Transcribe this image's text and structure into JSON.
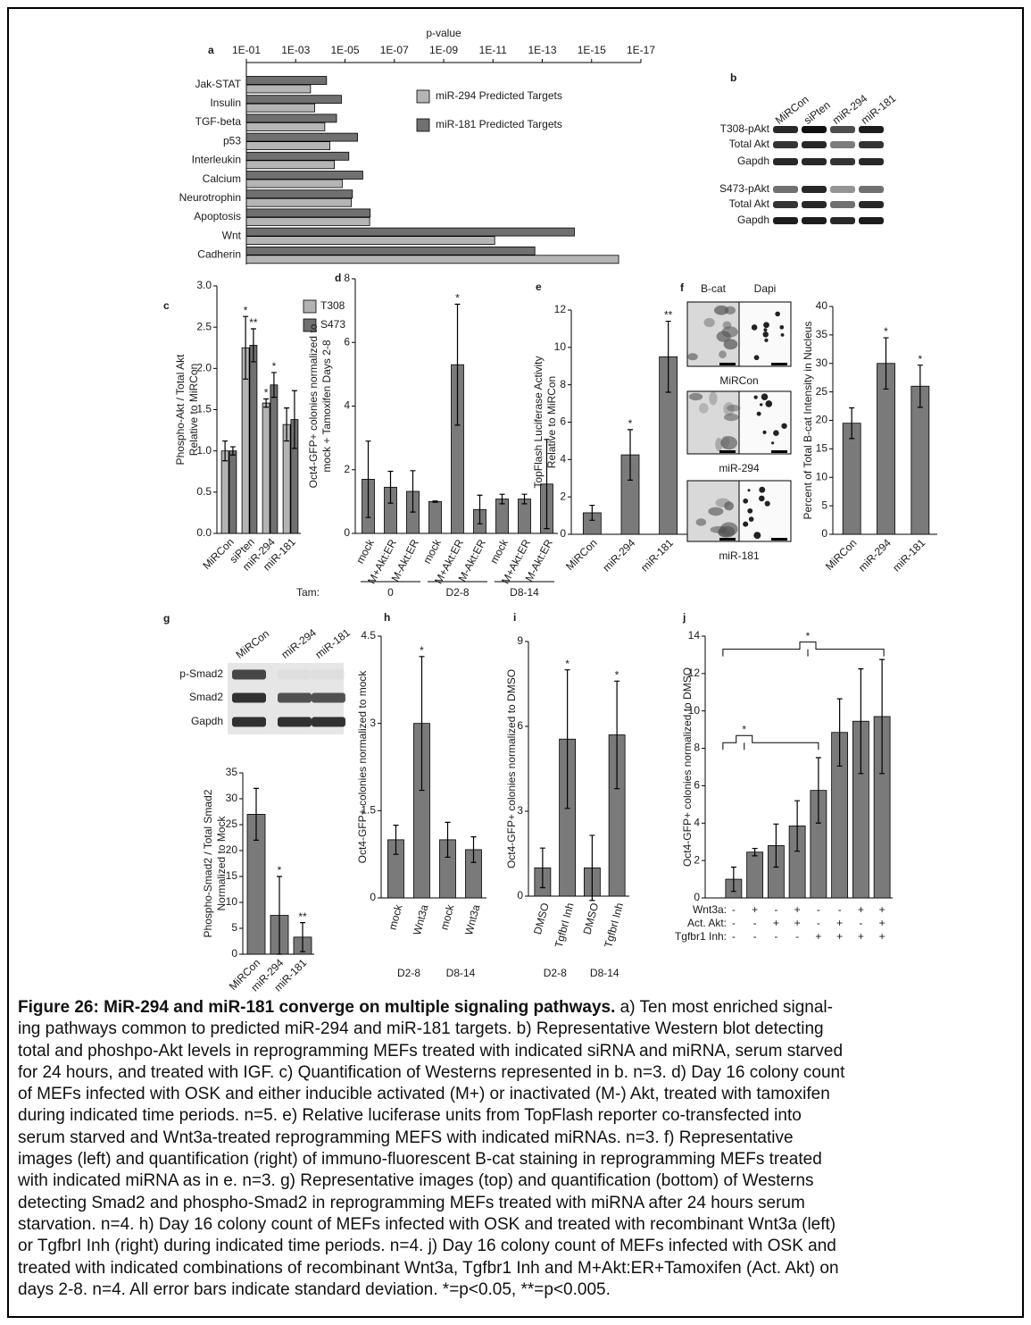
{
  "chart_data": [
    {
      "type": "hbar",
      "panel": "a",
      "x_label": "p-value",
      "xscale": "log",
      "xlim": [
        0.1,
        1e-17
      ],
      "xticks": [
        {
          "value": 0.1,
          "label": "1E-01"
        },
        {
          "value": 0.001,
          "label": "1E-03"
        },
        {
          "value": 1e-05,
          "label": "1E-05"
        },
        {
          "value": 1e-07,
          "label": "1E-07"
        },
        {
          "value": 1e-09,
          "label": "1E-09"
        },
        {
          "value": 1e-11,
          "label": "1E-11"
        },
        {
          "value": 1e-13,
          "label": "1E-13"
        },
        {
          "value": 1e-15,
          "label": "1E-15"
        },
        {
          "value": 1e-17,
          "label": "1E-17"
        }
      ],
      "categories": [
        "Jak-STAT",
        "Insulin",
        "TGF-beta",
        "p53",
        "Interleukin",
        "Calcium",
        "Neurotrophin",
        "Apoptosis",
        "Wnt",
        "Cadherin"
      ],
      "series": [
        {
          "name": "miR-294  Predicted Targets",
          "color": "#b5b5b5",
          "values": [
            0.00025,
            0.00017,
            6.6e-05,
            4.1e-05,
            2.7e-05,
            1.3e-05,
            5.5e-06,
            1e-06,
            8.5e-12,
            8e-17
          ]
        },
        {
          "name": "miR-181  Predicted Targets",
          "color": "#707070",
          "values": [
            5.6e-05,
            1.4e-05,
            2.2e-05,
            3.1e-06,
            7e-06,
            1.9e-06,
            5e-06,
            9.5e-07,
            5e-15,
            2e-13
          ]
        }
      ],
      "legend": "upper center"
    },
    {
      "type": "bar",
      "panel": "c",
      "y_label": [
        "Phospho-Akt / Total Akt",
        "Relative to MiRCon"
      ],
      "categories": [
        "MiRCon",
        "siPten",
        "miR-294",
        "miR-181"
      ],
      "series": [
        {
          "name": "T308",
          "color": "#b3b3b3",
          "values": [
            1.0,
            2.25,
            1.58,
            1.32
          ],
          "errors": [
            0.12,
            0.38,
            0.05,
            0.2
          ],
          "significance": [
            null,
            "*",
            "*",
            null
          ]
        },
        {
          "name": "S473",
          "color": "#707070",
          "values": [
            1.0,
            2.28,
            1.8,
            1.38
          ],
          "errors": [
            0.05,
            0.2,
            0.15,
            0.35
          ],
          "significance": [
            null,
            "**",
            "*",
            null
          ]
        }
      ],
      "ylim": [
        0,
        3
      ],
      "yticks": [
        {
          "value": 0,
          "label": "0.0"
        },
        0.5,
        {
          "value": 1,
          "label": "1.0"
        },
        1.5,
        {
          "value": 2,
          "label": "2.0"
        },
        2.5,
        {
          "value": 3,
          "label": "3.0"
        }
      ],
      "legend": "upper right"
    },
    {
      "type": "bar",
      "panel": "d",
      "y_label": [
        "Oct4-GFP+ colonies normalized to",
        "mock + Tamoxifen Days 2-8"
      ],
      "categories": [
        "mock",
        "M+Akt:ER",
        "M-Akt:ER",
        "mock",
        "M+Akt:ER",
        "M-Akt:ER",
        "mock",
        "M+Akt:ER",
        "M-Akt:ER"
      ],
      "series": [
        {
          "color": "#7a7a7a",
          "values": [
            1.7,
            1.45,
            1.32,
            1.0,
            5.3,
            0.75,
            1.08,
            1.08,
            1.55
          ],
          "errors": [
            1.2,
            0.5,
            0.65,
            0.02,
            1.9,
            0.45,
            0.15,
            0.15,
            1.4
          ],
          "significance": [
            null,
            null,
            null,
            null,
            "*",
            null,
            null,
            null,
            null
          ]
        }
      ],
      "ylim": [
        0,
        8
      ],
      "yticks": [
        0,
        2,
        4,
        6,
        8
      ],
      "group_title": "Tam:",
      "groups": [
        "0",
        "D2-8",
        "D8-14"
      ]
    },
    {
      "type": "bar",
      "panel": "e",
      "y_label": [
        "TopFlash Luciferase Activity",
        "Relative to MiRCon"
      ],
      "categories": [
        "MiRCon",
        "miR-294",
        "miR-181"
      ],
      "series": [
        {
          "color": "#7a7a7a",
          "values": [
            1.15,
            4.25,
            9.5
          ],
          "errors": [
            0.4,
            1.35,
            1.9
          ],
          "significance": [
            null,
            "*",
            "**"
          ]
        }
      ],
      "ylim": [
        0,
        12
      ],
      "yticks": [
        0,
        2,
        4,
        6,
        8,
        10,
        12
      ]
    },
    {
      "type": "bar",
      "y_label": [
        "Percent of Total B-cat Intensity in Nucleus"
      ],
      "categories": [
        "MiRCon",
        "miR-294",
        "miR-181"
      ],
      "series": [
        {
          "color": "#7a7a7a",
          "values": [
            19.5,
            30,
            26
          ],
          "errors": [
            2.7,
            4.5,
            3.7
          ],
          "significance": [
            null,
            "*",
            "*"
          ]
        }
      ],
      "ylim": [
        0,
        40
      ],
      "yticks": [
        0,
        5,
        10,
        15,
        20,
        25,
        30,
        35,
        40
      ]
    },
    {
      "type": "bar",
      "y_label": [
        "Phospho-Smad2 / Total Smad2",
        "Normalized to Mock"
      ],
      "categories": [
        "MiRCon",
        "miR-294",
        "miR-181"
      ],
      "series": [
        {
          "color": "#7a7a7a",
          "values": [
            27,
            7.5,
            3.3
          ],
          "errors": [
            5,
            7.5,
            2.8
          ],
          "significance": [
            null,
            "*",
            "**"
          ]
        }
      ],
      "ylim": [
        0,
        35
      ],
      "yticks": [
        0,
        5,
        10,
        15,
        20,
        25,
        30,
        35
      ]
    },
    {
      "type": "bar",
      "panel": "h",
      "y_label": [
        "Oct4-GFP+ colonies normalized to mock"
      ],
      "categories": [
        "mock",
        "Wnt3a",
        "mock",
        "Wnt3a"
      ],
      "series": [
        {
          "color": "#7a7a7a",
          "values": [
            1.0,
            3.0,
            1.0,
            0.83
          ],
          "errors": [
            0.25,
            1.15,
            0.3,
            0.22
          ],
          "significance": [
            null,
            "*",
            null,
            null
          ]
        }
      ],
      "ylim": [
        0,
        4.5
      ],
      "yticks": [
        0,
        1.5,
        3,
        4.5
      ],
      "groups": [
        "D2-8",
        "D8-14"
      ]
    },
    {
      "type": "bar",
      "panel": "i",
      "y_label": [
        "Oct4-GFP+ colonies normalized to DMSO"
      ],
      "categories": [
        "DMSO",
        "TgfbrI Inh",
        "DMSO",
        "TgfbrI Inh"
      ],
      "series": [
        {
          "color": "#7a7a7a",
          "values": [
            1.0,
            5.55,
            1.0,
            5.7
          ],
          "errors": [
            0.7,
            2.45,
            1.15,
            1.9
          ],
          "significance": [
            null,
            "*",
            null,
            "*"
          ]
        }
      ],
      "ylim": [
        0,
        9
      ],
      "yticks": [
        0,
        3,
        6,
        9
      ],
      "groups": [
        "D2-8",
        "D8-14"
      ]
    },
    {
      "type": "bar",
      "panel": "j",
      "y_label": [
        "Oct4-GFP+ colonies normalized to DMSO"
      ],
      "series": [
        {
          "color": "#7a7a7a",
          "values": [
            1.0,
            2.45,
            2.8,
            3.85,
            5.75,
            8.85,
            9.45,
            9.7
          ],
          "errors": [
            0.65,
            0.2,
            1.15,
            1.35,
            1.75,
            1.8,
            2.8,
            3.05
          ]
        }
      ],
      "ylim": [
        0,
        14
      ],
      "yticks": [
        0,
        2,
        4,
        6,
        8,
        10,
        12,
        14
      ],
      "conditions": [
        {
          "label": "Wnt3a:",
          "values": [
            "-",
            "+",
            "-",
            "+",
            "-",
            "-",
            "+",
            "+"
          ]
        },
        {
          "label": "Act. Akt:",
          "values": [
            "-",
            "-",
            "+",
            "+",
            "-",
            "+",
            "-",
            "+"
          ]
        },
        {
          "label": "Tgfbr1 Inh:",
          "values": [
            "-",
            "-",
            "-",
            "-",
            "+",
            "+",
            "+",
            "+"
          ]
        }
      ],
      "brackets": [
        "*",
        "*"
      ]
    }
  ],
  "blots": [
    {
      "panel": "b",
      "lanes": [
        "MiRCon",
        "siPten",
        "miR-294",
        "miR-181"
      ],
      "rows": [
        "T308-pAkt",
        "Total Akt",
        "Gapdh",
        "S473-pAkt",
        "Total Akt",
        "Gapdh"
      ]
    },
    {
      "panel": "g",
      "lanes": [
        "MiRCon",
        "miR-294",
        "miR-181"
      ],
      "rows": [
        "p-Smad2",
        "Smad2",
        "Gapdh"
      ]
    }
  ],
  "micrographs": {
    "panel": "f",
    "channels": [
      "B-cat",
      "Dapi"
    ],
    "samples": [
      "MiRCon",
      "miR-294",
      "miR-181"
    ]
  },
  "caption": {
    "title": "Figure 26: MiR-294 and miR-181 converge on multiple signaling pathways.",
    "lines": [
      "a) Ten most enriched signal-",
      "ing pathways common to predicted miR-294 and miR-181 targets. b) Representative Western blot detecting",
      "total and phoshpo-Akt levels in reprogramming MEFs treated with indicated siRNA and miRNA, serum starved",
      "for 24 hours, and treated with IGF. c) Quantification of Westerns represented in b. n=3. d) Day 16 colony count",
      "of MEFs infected with OSK and either inducible activated (M+) or inactivated (M-) Akt, treated with tamoxifen",
      "during indicated time periods. n=5. e) Relative luciferase units from TopFlash reporter co-transfected into",
      "serum starved and Wnt3a-treated reprogramming MEFS with indicated miRNAs. n=3. f) Representative",
      "images (left) and quantification (right) of immuno-fluorescent B-cat staining in reprogramming MEFs treated",
      "with indicated miRNA as in e. n=3. g) Representative images (top) and quantification (bottom) of Westerns",
      "detecting Smad2 and phospho-Smad2 in reprogramming MEFs treated with miRNA after 24 hours serum",
      "starvation. n=4. h) Day 16 colony count of MEFs infected with OSK and treated with recombinant Wnt3a (left)",
      "or TgfbrI Inh (right) during indicated time periods. n=4. j) Day 16 colony count of MEFs infected with OSK and",
      "treated with indicated combinations of recombinant Wnt3a, Tgfbr1 Inh and M+Akt:ER+Tamoxifen (Act. Akt) on",
      "days 2-8. n=4.  All error bars indicate standard deviation. *=p<0.05, **=p<0.005."
    ]
  }
}
